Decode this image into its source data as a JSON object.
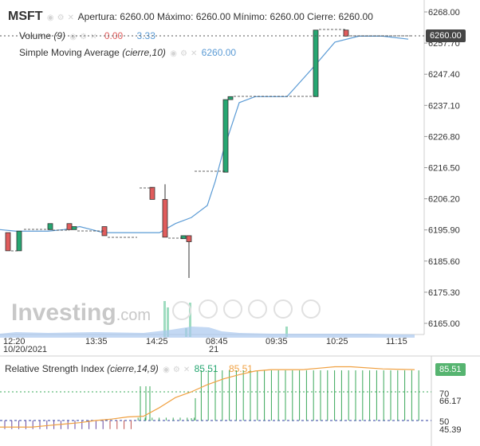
{
  "header": {
    "symbol": "MSFT",
    "ohlc_text": "Apertura: 6260.00 Máximo: 6260.00 Mínimo: 6260.00 Cierre: 6260.00",
    "volume_label": "Volume",
    "volume_param": "(9)",
    "volume_value_1": "0.00",
    "volume_value_2": "3.33",
    "sma_label": "Simple Moving Average",
    "sma_param": "(cierre,10)",
    "sma_value": "6260.00",
    "rsi_label": "Relative Strength Index",
    "rsi_param": "(cierre,14,9)",
    "rsi_value_1": "85.51",
    "rsi_value_2": "85.51"
  },
  "badges": {
    "price": "6260.00",
    "rsi": "85.51"
  },
  "watermark": {
    "main": "Investing",
    "suffix": ".com"
  },
  "colors": {
    "up": "#26a671",
    "down": "#e05c5c",
    "sma": "#5b9bd5",
    "rsi_line": "#f0a040",
    "rsi_signal": "#7a7a7a",
    "badge_bg": "#454545",
    "rsi_badge_bg": "#56b470",
    "volume_area": "#a9c8ee"
  },
  "chart_data": {
    "type": "candlestick",
    "price_axis": {
      "ticks": [
        "6268.00",
        "6257.70",
        "6247.40",
        "6237.10",
        "6226.80",
        "6216.50",
        "6206.20",
        "6195.90",
        "6185.60",
        "6175.30",
        "6165.00"
      ]
    },
    "time_axis": {
      "ticks": [
        "12:20",
        "13:35",
        "14:25",
        "08:45",
        "09:35",
        "10:25",
        "11:15"
      ],
      "dates": [
        "10/20/2021",
        "21"
      ]
    },
    "candles": [
      {
        "o": 6195,
        "h": 6195,
        "l": 6189,
        "c": 6189
      },
      {
        "o": 6189,
        "h": 6195.5,
        "l": 6189,
        "c": 6195.5
      },
      {
        "o": 6196,
        "h": 6198,
        "l": 6196,
        "c": 6198
      },
      {
        "o": 6198,
        "h": 6198,
        "l": 6196,
        "c": 6196
      },
      {
        "o": 6196,
        "h": 6197,
        "l": 6196,
        "c": 6197
      },
      {
        "o": 6197,
        "h": 6197,
        "l": 6194,
        "c": 6194
      },
      {
        "o": 6210,
        "h": 6210,
        "l": 6206,
        "c": 6206
      },
      {
        "o": 6206,
        "h": 6211,
        "l": 6193.5,
        "c": 6193.5
      },
      {
        "o": 6193,
        "h": 6194,
        "l": 6193,
        "c": 6194
      },
      {
        "o": 6194,
        "h": 6194,
        "l": 6180,
        "c": 6192
      },
      {
        "o": 6215,
        "h": 6239,
        "l": 6215,
        "c": 6239
      },
      {
        "o": 6239,
        "h": 6240,
        "l": 6239,
        "c": 6240
      },
      {
        "o": 6240,
        "h": 6262,
        "l": 6240,
        "c": 6262
      },
      {
        "o": 6262,
        "h": 6262,
        "l": 6260,
        "c": 6260
      }
    ],
    "sma": [
      6196,
      6195.5,
      6195.5,
      6195.5,
      6196,
      6197,
      6196,
      6195,
      6195,
      6195,
      6198,
      6200,
      6204,
      6212,
      6222,
      6238,
      6240,
      6240,
      6240,
      6250,
      6258,
      6260,
      6260,
      6259
    ],
    "rsi_axis": {
      "ticks": [
        "70",
        "66.17",
        "50",
        "45.39"
      ]
    },
    "rsi_levels": [
      70,
      50
    ],
    "rsi": [
      45.4,
      45.4,
      45.4,
      46.5,
      47.5,
      48.5,
      50,
      51,
      52.5,
      53,
      59,
      66,
      70,
      75,
      79,
      82,
      84.5,
      85.5,
      85.5,
      85.5,
      86.5,
      87.5,
      87.5,
      86,
      85.5
    ],
    "rsi_signal": [
      45.39,
      66.17
    ]
  }
}
